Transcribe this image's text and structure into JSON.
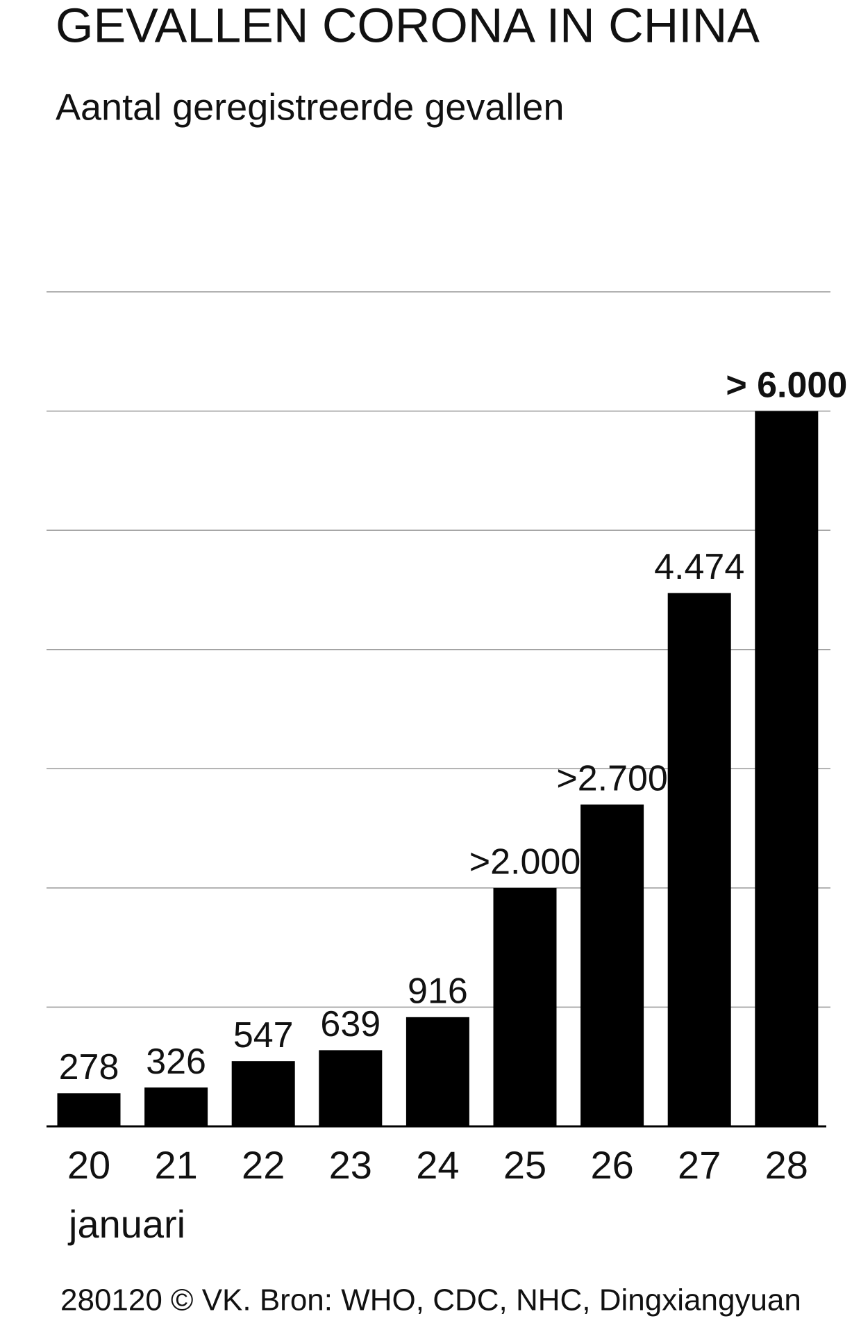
{
  "chart_data": {
    "type": "bar",
    "title": "GEVALLEN CORONA IN CHINA",
    "subtitle": "Aantal geregistreerde gevallen",
    "categories": [
      "20",
      "21",
      "22",
      "23",
      "24",
      "25",
      "26",
      "27",
      "28"
    ],
    "x_label": "januari",
    "values": [
      278,
      326,
      547,
      639,
      916,
      2000,
      2700,
      4474,
      6000
    ],
    "value_labels": [
      "278",
      "326",
      "547",
      "639",
      "916",
      ">2.000",
      ">2.700",
      "4.474",
      "> 6.000"
    ],
    "color": "#000000",
    "ylim": [
      0,
      7000
    ],
    "yticks": [
      0,
      1000,
      2000,
      3000,
      4000,
      5000,
      6000,
      7000
    ],
    "grid": true,
    "source": "280120 © VK. Bron: WHO, CDC, NHC, Dingxiangyuan"
  }
}
